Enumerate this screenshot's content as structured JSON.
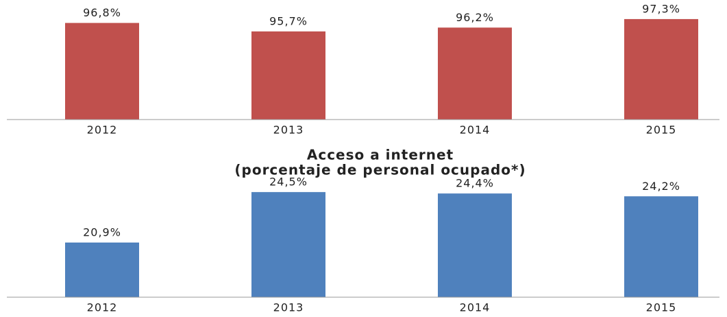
{
  "chart_data": [
    {
      "type": "bar",
      "categories": [
        "2012",
        "2013",
        "2014",
        "2015"
      ],
      "values": [
        96.8,
        95.7,
        96.2,
        97.3
      ],
      "value_labels": [
        "96,8%",
        "95,7%",
        "96,2%",
        "97,3%"
      ],
      "color": "#c0504d",
      "ylim": [
        84.3,
        98
      ]
    },
    {
      "type": "bar",
      "title": "Acceso a internet",
      "subtitle": "(porcentaje de personal ocupado*)",
      "categories": [
        "2012",
        "2013",
        "2014",
        "2015"
      ],
      "values": [
        20.9,
        24.5,
        24.4,
        24.2
      ],
      "value_labels": [
        "20,9%",
        "24,5%",
        "24,4%",
        "24,2%"
      ],
      "color": "#4f81bd",
      "ylim": [
        17,
        24.8
      ]
    }
  ]
}
